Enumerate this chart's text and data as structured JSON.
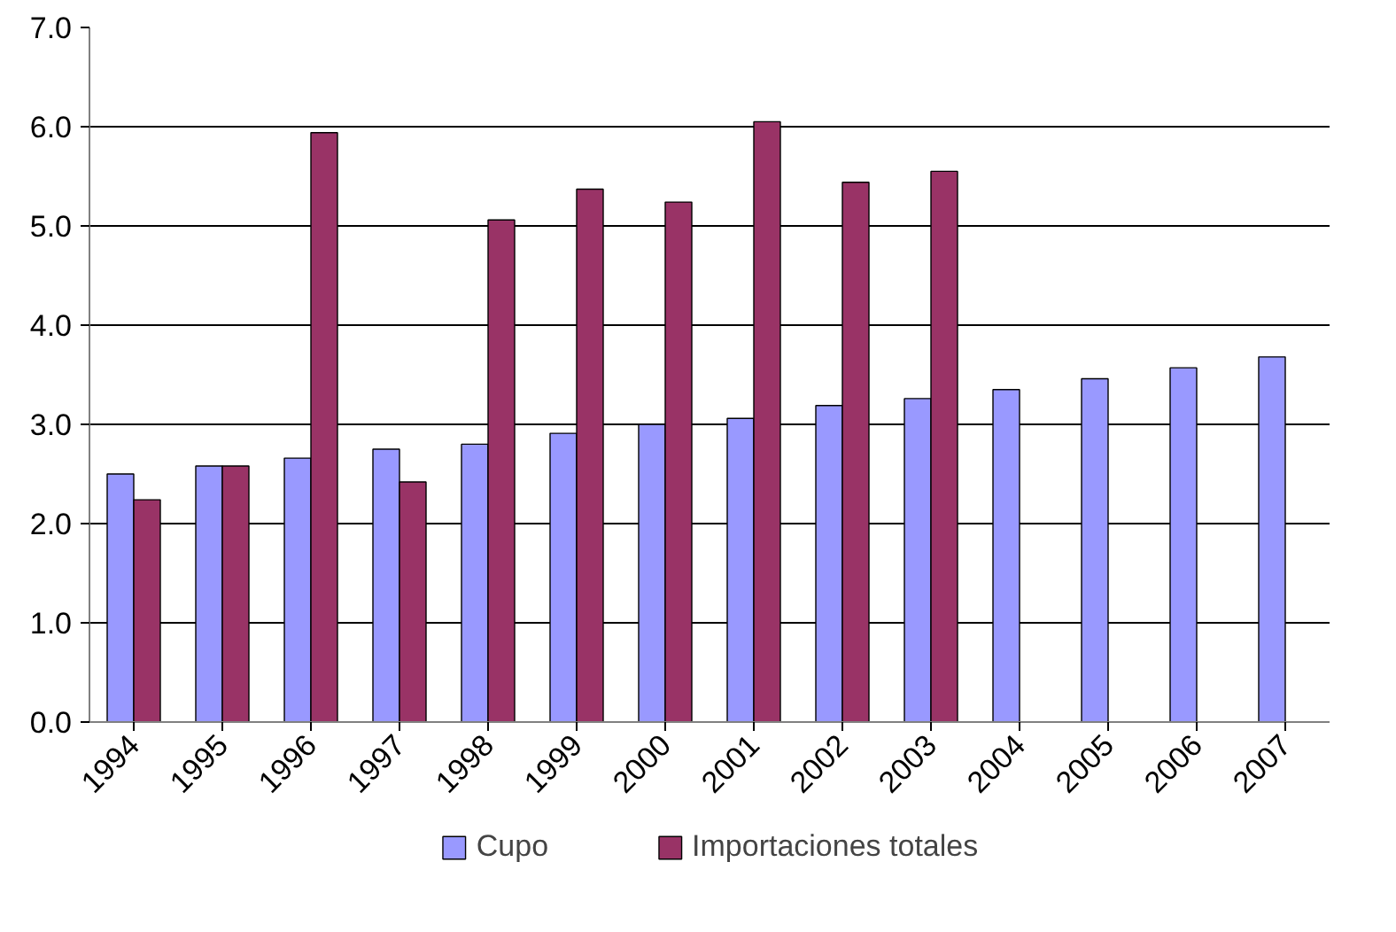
{
  "chart_data": {
    "type": "bar",
    "categories": [
      "1994",
      "1995",
      "1996",
      "1997",
      "1998",
      "1999",
      "2000",
      "2001",
      "2002",
      "2003",
      "2004",
      "2005",
      "2006",
      "2007"
    ],
    "series": [
      {
        "name": "Cupo",
        "color": "#9999ff",
        "values": [
          2.5,
          2.58,
          2.66,
          2.75,
          2.8,
          2.91,
          3.0,
          3.06,
          3.19,
          3.26,
          3.35,
          3.46,
          3.57,
          3.68
        ]
      },
      {
        "name": "Importaciones totales",
        "color": "#993366",
        "values": [
          2.24,
          2.58,
          5.94,
          2.42,
          5.06,
          5.37,
          5.24,
          6.05,
          5.44,
          5.55,
          null,
          null,
          null,
          null
        ]
      }
    ],
    "ylim": [
      0,
      7
    ],
    "yticks": [
      {
        "value": 0,
        "label": "0.0"
      },
      {
        "value": 1,
        "label": "1.0"
      },
      {
        "value": 2,
        "label": "2.0"
      },
      {
        "value": 3,
        "label": "3.0"
      },
      {
        "value": 4,
        "label": "4.0"
      },
      {
        "value": 5,
        "label": "5.0"
      },
      {
        "value": 6,
        "label": "6.0"
      },
      {
        "value": 7,
        "label": "7.0"
      }
    ],
    "grid": "y",
    "legend": "bottom"
  }
}
